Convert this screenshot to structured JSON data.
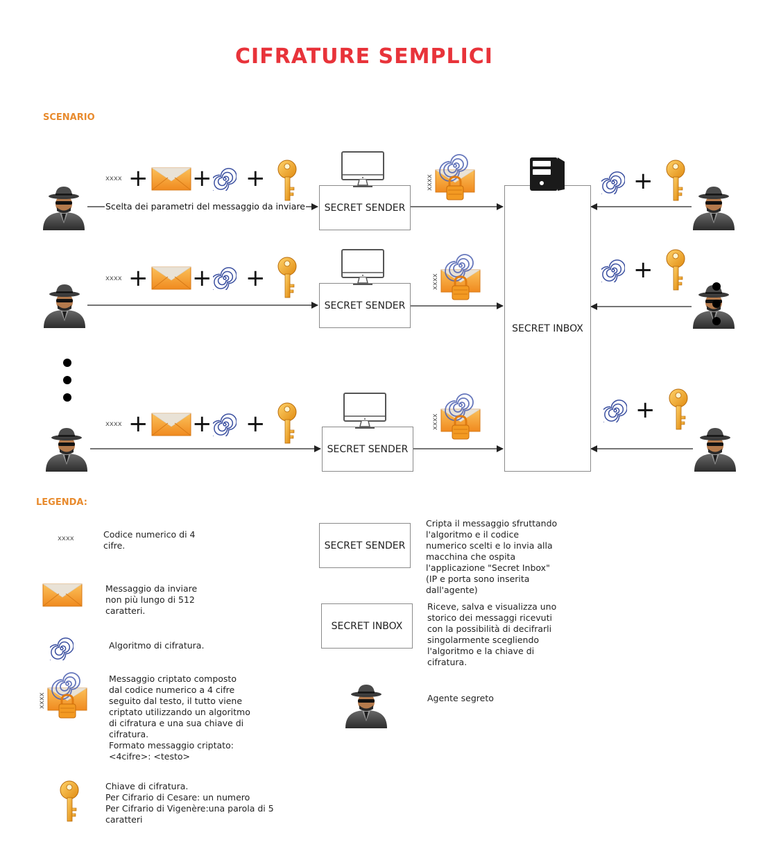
{
  "title": "CIFRATURE SEMPLICI",
  "scenario_label": "SCENARIO",
  "legend_label": "LEGENDA:",
  "code_text": "xxxx",
  "plus_sign": "+",
  "sender_label": "SECRET SENDER",
  "inbox_label": "SECRET INBOX",
  "arrow_label": "Scelta dei parametri del messaggio da inviare",
  "colors": {
    "title": "#e8333a",
    "section": "#e88b2e",
    "envelope": "#f5a733",
    "key": "#f2a321",
    "spiral": "#3a4fa0"
  },
  "icons": [
    "spy-agent-icon",
    "envelope-icon",
    "spiral-algorithm-icon",
    "key-icon",
    "monitor-icon",
    "server-icon",
    "encrypted-message-icon"
  ],
  "legend": {
    "code": [
      "Codice numerico di 4",
      "cifre."
    ],
    "envelope": [
      "Messaggio da inviare",
      "non più lungo di 512",
      "caratteri."
    ],
    "spiral": [
      "Algoritmo di cifratura."
    ],
    "encrypted": [
      "Messaggio criptato composto",
      "dal codice numerico a 4 cifre",
      "seguito dal testo, il tutto viene",
      "criptato utilizzando un algoritmo",
      "di cifratura e una sua chiave di",
      "cifratura.",
      "Formato messaggio criptato:",
      " <4cifre>: <testo>"
    ],
    "key": [
      "Chiave di cifratura.",
      "Per Cifrario di Cesare: un numero",
      "Per Cifrario di Vigenère:una parola di 5",
      "caratteri"
    ],
    "sender": [
      "Cripta il messaggio sfruttando",
      "l'algoritmo e il codice",
      "numerico scelti e lo invia alla",
      "macchina che ospita",
      "l'applicazione \"Secret Inbox\"",
      "(IP e porta sono inserita",
      "dall'agente)"
    ],
    "inbox": [
      "Riceve, salva e visualizza uno",
      "storico dei messaggi ricevuti",
      "con la possibilità di decifrarli",
      "singolarmente scegliendo",
      "l'algoritmo e la chiave di",
      "cifratura."
    ],
    "agent": [
      "Agente segreto"
    ]
  }
}
